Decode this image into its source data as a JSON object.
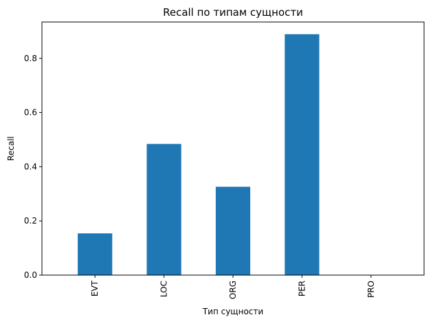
{
  "chart_data": {
    "type": "bar",
    "title": "Recall по типам сущности",
    "xlabel": "Тип сущности",
    "ylabel": "Recall",
    "categories": [
      "EVT",
      "LOC",
      "ORG",
      "PER",
      "PRO"
    ],
    "values": [
      0.154,
      0.484,
      0.326,
      0.889,
      0.0
    ],
    "ylim": [
      0,
      0.934
    ],
    "yticks": [
      0.0,
      0.2,
      0.4,
      0.6,
      0.8
    ],
    "ytick_labels": [
      "0.0",
      "0.2",
      "0.4",
      "0.6",
      "0.8"
    ],
    "bar_color": "#1f77b4",
    "grid": false,
    "legend": "none"
  }
}
